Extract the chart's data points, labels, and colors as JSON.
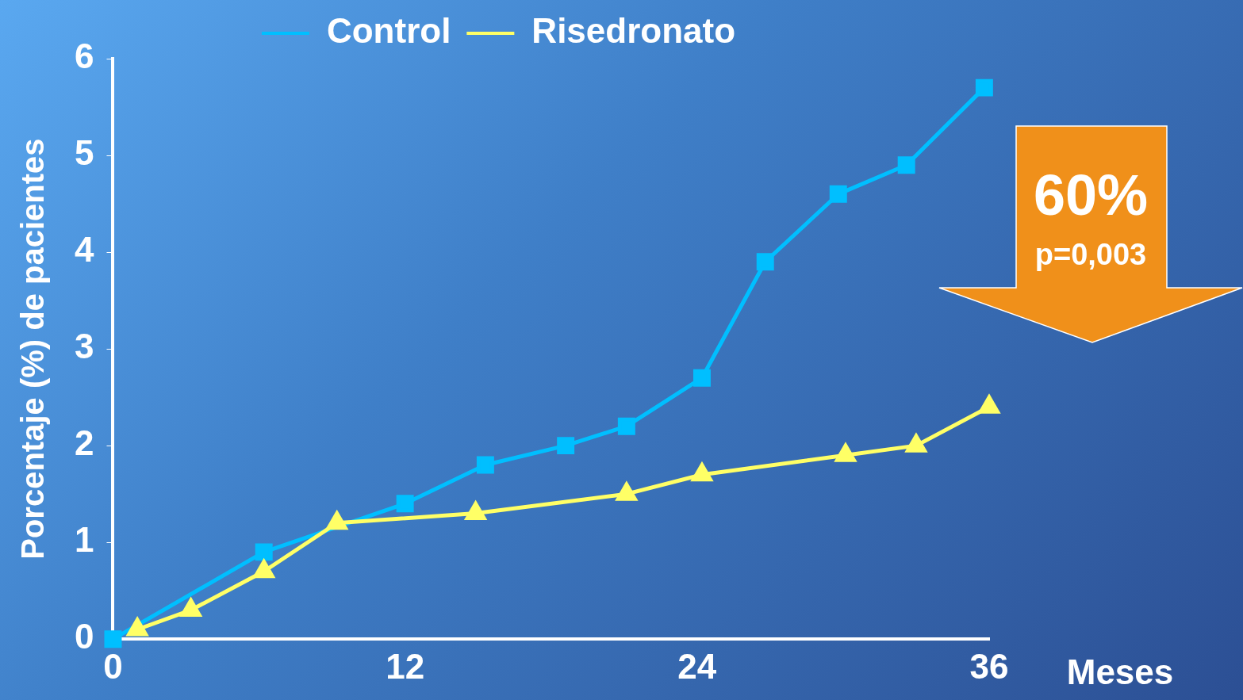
{
  "chart_data": {
    "type": "line",
    "xlabel": "Meses",
    "ylabel": "Porcentaje (%) de pacientes",
    "xlim": [
      0,
      36
    ],
    "xticks": [
      0,
      12,
      24,
      36
    ],
    "ylim": [
      0,
      6
    ],
    "yticks": [
      0,
      1,
      2,
      3,
      4,
      5,
      6
    ],
    "grid": false,
    "legend": "top",
    "line_style": "solid",
    "annotations": [
      "60%",
      "p=0,003"
    ],
    "series": [
      {
        "name": "Control",
        "color": "#00bfff",
        "marker": "square",
        "x": [
          0,
          6.2,
          12,
          15.3,
          18.6,
          21.1,
          24.2,
          26.8,
          29.8,
          32.6,
          35.8
        ],
        "values": [
          0,
          0.9,
          1.4,
          1.8,
          2,
          2.2,
          2.7,
          3.9,
          4.6,
          4.9,
          5.7
        ]
      },
      {
        "name": "Risedronato",
        "color": "#ffff66",
        "marker": "triangle",
        "x": [
          1,
          3.2,
          6.2,
          9.2,
          14.9,
          21.1,
          24.2,
          30.1,
          33,
          36
        ],
        "values": [
          0.1,
          0.3,
          0.7,
          1.2,
          1.3,
          1.5,
          1.7,
          1.9,
          2,
          2.4
        ]
      }
    ]
  }
}
